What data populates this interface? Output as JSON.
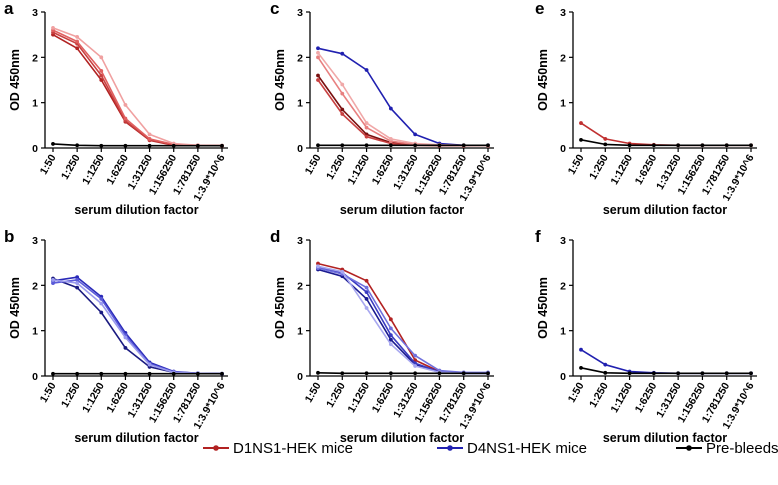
{
  "chart_data": [
    {
      "panel": "a",
      "type": "line",
      "categories": [
        "1:50",
        "1:250",
        "1:1250",
        "1:6250",
        "1:31250",
        "1:156250",
        "1:781250",
        "1:3.9*10^6"
      ],
      "xlabel": "serum dilution factor",
      "ylabel": "OD 450nm",
      "ylim": [
        0,
        3
      ],
      "yticks": [
        0,
        1,
        2,
        3
      ],
      "series": [
        {
          "name": "D1NS1-HEK mice",
          "color": "#b22222",
          "values": [
            2.5,
            2.2,
            1.5,
            0.58,
            0.17,
            0.06,
            0.05,
            0.05
          ]
        },
        {
          "name": "D1NS1-HEK mice",
          "color": "#c84040",
          "values": [
            2.55,
            2.3,
            1.6,
            0.6,
            0.18,
            0.07,
            0.05,
            0.05
          ]
        },
        {
          "name": "D1NS1-HEK mice",
          "color": "#e06060",
          "values": [
            2.6,
            2.35,
            1.7,
            0.65,
            0.2,
            0.08,
            0.06,
            0.05
          ]
        },
        {
          "name": "D1NS1-HEK mice",
          "color": "#f0a0a0",
          "values": [
            2.65,
            2.45,
            2.0,
            0.95,
            0.3,
            0.1,
            0.06,
            0.05
          ]
        },
        {
          "name": "Pre-bleeds",
          "color": "#000000",
          "values": [
            0.09,
            0.06,
            0.05,
            0.05,
            0.05,
            0.05,
            0.05,
            0.05
          ]
        }
      ]
    },
    {
      "panel": "c",
      "type": "line",
      "categories": [
        "1:50",
        "1:250",
        "1:1250",
        "1:6250",
        "1:31250",
        "1:156250",
        "1:781250",
        "1:3.9*10^6"
      ],
      "xlabel": "serum dilution factor",
      "ylabel": "OD 450nm",
      "ylim": [
        0,
        3
      ],
      "yticks": [
        0,
        1,
        2,
        3
      ],
      "series": [
        {
          "name": "D4NS1-HEK mice",
          "color": "#2020b0",
          "values": [
            2.2,
            2.08,
            1.72,
            0.87,
            0.3,
            0.1,
            0.06,
            0.06
          ]
        },
        {
          "name": "D1NS1-HEK mice",
          "color": "#7a1010",
          "values": [
            1.6,
            0.85,
            0.3,
            0.12,
            0.07,
            0.06,
            0.05,
            0.05
          ]
        },
        {
          "name": "D1NS1-HEK mice",
          "color": "#c84040",
          "values": [
            1.5,
            0.75,
            0.25,
            0.1,
            0.06,
            0.05,
            0.05,
            0.05
          ]
        },
        {
          "name": "D1NS1-HEK mice",
          "color": "#e88080",
          "values": [
            2.0,
            1.2,
            0.45,
            0.15,
            0.08,
            0.06,
            0.05,
            0.05
          ]
        },
        {
          "name": "D1NS1-HEK mice",
          "color": "#f0a8a8",
          "values": [
            2.1,
            1.4,
            0.55,
            0.2,
            0.1,
            0.07,
            0.06,
            0.05
          ]
        },
        {
          "name": "Pre-bleeds",
          "color": "#000000",
          "values": [
            0.06,
            0.06,
            0.06,
            0.06,
            0.06,
            0.06,
            0.06,
            0.06
          ]
        }
      ]
    },
    {
      "panel": "e",
      "type": "line",
      "categories": [
        "1:50",
        "1:250",
        "1:1250",
        "1:6250",
        "1:31250",
        "1:156250",
        "1:781250",
        "1:3.9*10^6"
      ],
      "xlabel": "serum dilution factor",
      "ylabel": "OD 450nm",
      "ylim": [
        0,
        3
      ],
      "yticks": [
        0,
        1,
        2,
        3
      ],
      "series": [
        {
          "name": "D1NS1-HEK mice",
          "color": "#c03030",
          "values": [
            0.55,
            0.2,
            0.1,
            0.07,
            0.06,
            0.06,
            0.06,
            0.06
          ]
        },
        {
          "name": "Pre-bleeds",
          "color": "#000000",
          "values": [
            0.18,
            0.08,
            0.06,
            0.06,
            0.06,
            0.06,
            0.06,
            0.06
          ]
        }
      ]
    },
    {
      "panel": "b",
      "type": "line",
      "categories": [
        "1:50",
        "1:250",
        "1:1250",
        "1:6250",
        "1:31250",
        "1:156250",
        "1:781250",
        "1:3.9*10^6"
      ],
      "xlabel": "serum dilution factor",
      "ylabel": "OD 450nm",
      "ylim": [
        0,
        3
      ],
      "yticks": [
        0,
        1,
        2,
        3
      ],
      "series": [
        {
          "name": "D4NS1-HEK mice",
          "color": "#1a1a80",
          "values": [
            2.15,
            1.95,
            1.4,
            0.62,
            0.2,
            0.08,
            0.06,
            0.05
          ]
        },
        {
          "name": "D4NS1-HEK mice",
          "color": "#2a2ab8",
          "values": [
            2.1,
            2.18,
            1.75,
            0.95,
            0.3,
            0.1,
            0.06,
            0.05
          ]
        },
        {
          "name": "D4NS1-HEK mice",
          "color": "#5a5ad8",
          "values": [
            2.05,
            2.12,
            1.7,
            0.9,
            0.27,
            0.09,
            0.06,
            0.05
          ]
        },
        {
          "name": "D4NS1-HEK mice",
          "color": "#9a9aee",
          "values": [
            2.12,
            2.05,
            1.6,
            0.85,
            0.25,
            0.08,
            0.06,
            0.05
          ]
        },
        {
          "name": "Pre-bleeds",
          "color": "#000000",
          "values": [
            0.05,
            0.05,
            0.05,
            0.05,
            0.05,
            0.05,
            0.05,
            0.05
          ]
        }
      ]
    },
    {
      "panel": "d",
      "type": "line",
      "categories": [
        "1:50",
        "1:250",
        "1:1250",
        "1:6250",
        "1:31250",
        "1:156250",
        "1:781250",
        "1:3.9*10^6"
      ],
      "xlabel": "serum dilution factor",
      "ylabel": "OD 450nm",
      "ylim": [
        0,
        3
      ],
      "yticks": [
        0,
        1,
        2,
        3
      ],
      "series": [
        {
          "name": "D1NS1-HEK mice",
          "color": "#b22222",
          "values": [
            2.48,
            2.35,
            2.1,
            1.25,
            0.35,
            0.1,
            0.07,
            0.06
          ]
        },
        {
          "name": "D4NS1-HEK mice",
          "color": "#1a1a90",
          "values": [
            2.35,
            2.2,
            1.7,
            0.8,
            0.25,
            0.08,
            0.06,
            0.06
          ]
        },
        {
          "name": "D4NS1-HEK mice",
          "color": "#3a3ac0",
          "values": [
            2.4,
            2.28,
            1.85,
            0.9,
            0.28,
            0.09,
            0.06,
            0.06
          ]
        },
        {
          "name": "D4NS1-HEK mice",
          "color": "#7070dd",
          "values": [
            2.38,
            2.25,
            1.95,
            1.05,
            0.45,
            0.12,
            0.08,
            0.08
          ]
        },
        {
          "name": "D4NS1-HEK mice",
          "color": "#a8a8f0",
          "values": [
            2.42,
            2.3,
            1.5,
            0.7,
            0.22,
            0.08,
            0.06,
            0.06
          ]
        },
        {
          "name": "Pre-bleeds",
          "color": "#000000",
          "values": [
            0.07,
            0.06,
            0.06,
            0.06,
            0.06,
            0.06,
            0.06,
            0.06
          ]
        }
      ]
    },
    {
      "panel": "f",
      "type": "line",
      "categories": [
        "1:50",
        "1:250",
        "1:1250",
        "1:6250",
        "1:31250",
        "1:156250",
        "1:781250",
        "1:3.9*10^6"
      ],
      "xlabel": "serum dilution factor",
      "ylabel": "OD 450nm",
      "ylim": [
        0,
        3
      ],
      "yticks": [
        0,
        1,
        2,
        3
      ],
      "series": [
        {
          "name": "D4NS1-HEK mice",
          "color": "#2020b0",
          "values": [
            0.58,
            0.25,
            0.1,
            0.07,
            0.06,
            0.06,
            0.06,
            0.06
          ]
        },
        {
          "name": "Pre-bleeds",
          "color": "#000000",
          "values": [
            0.18,
            0.07,
            0.06,
            0.06,
            0.06,
            0.06,
            0.06,
            0.06
          ]
        }
      ]
    }
  ],
  "legend": [
    {
      "label": "D1NS1-HEK mice",
      "color": "#b22222"
    },
    {
      "label": "D4NS1-HEK mice",
      "color": "#2020b0"
    },
    {
      "label": "Pre-bleeds",
      "color": "#000000"
    }
  ]
}
